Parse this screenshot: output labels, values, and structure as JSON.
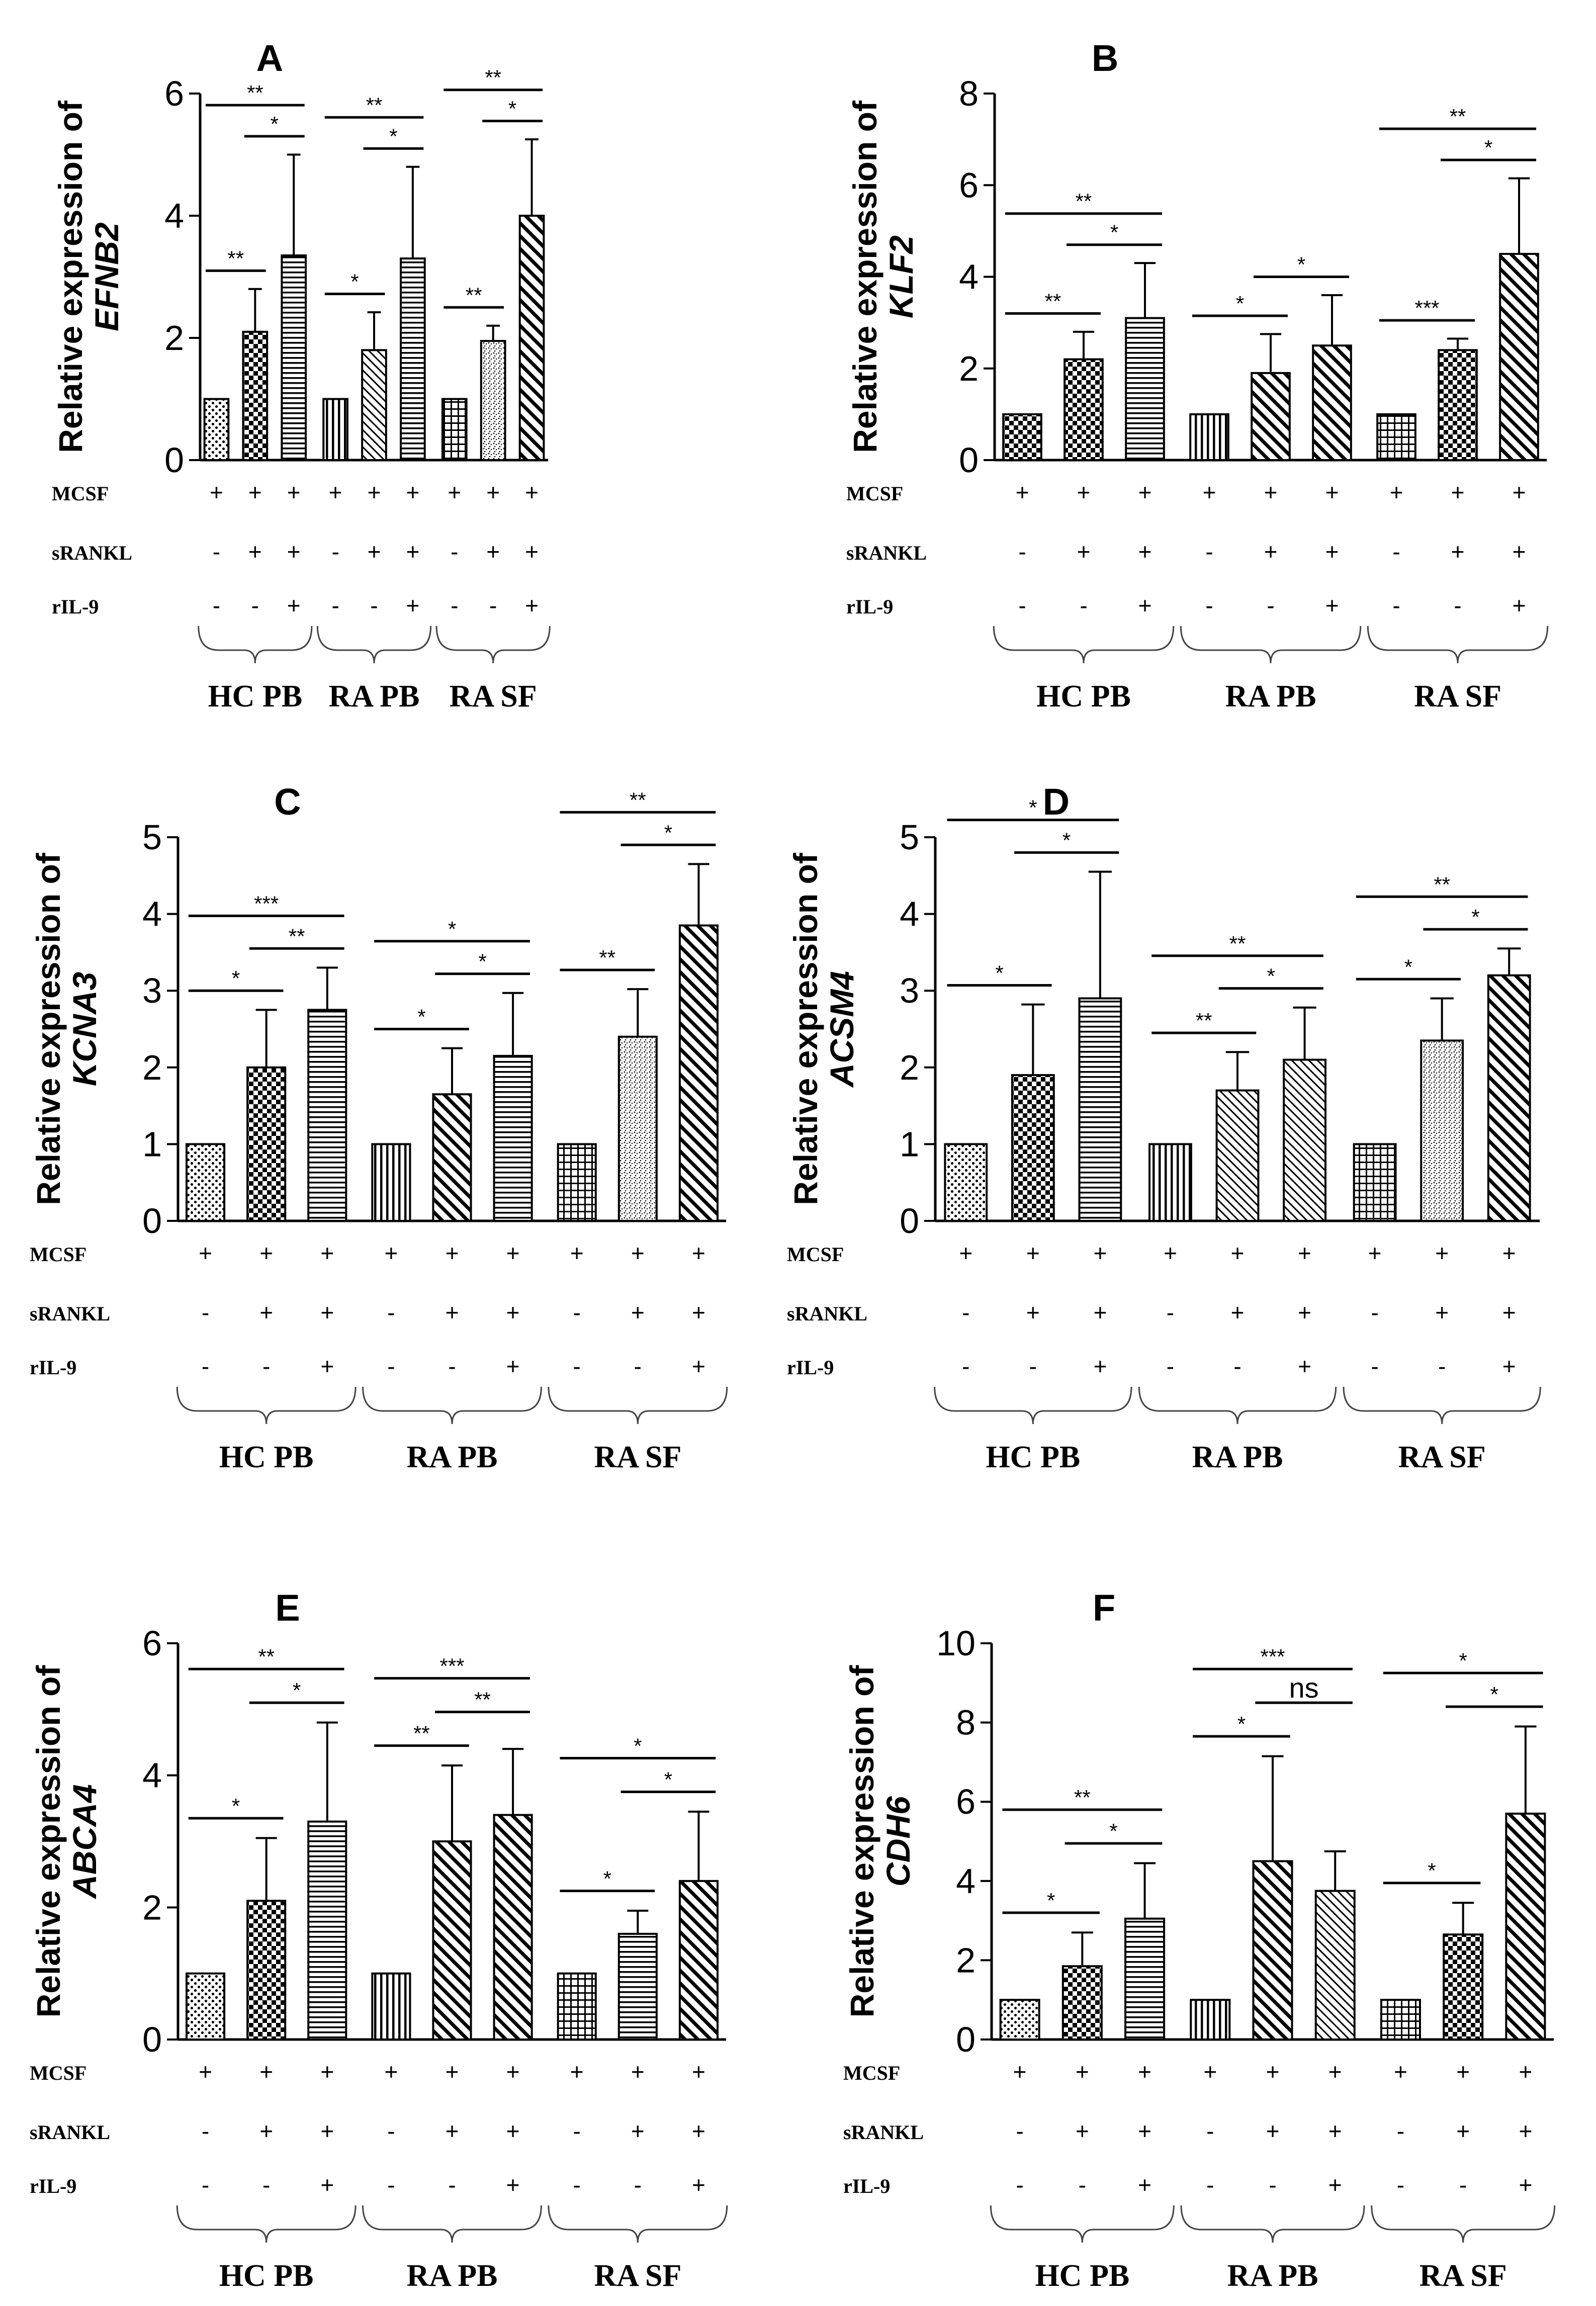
{
  "figure": {
    "ylabel_prefix": "Relative expression of",
    "row_labels": [
      "MCSF",
      "sRANKL",
      "rIL-9"
    ],
    "row_signs": [
      [
        "+",
        "+",
        "+",
        "+",
        "+",
        "+",
        "+",
        "+",
        "+"
      ],
      [
        "-",
        "+",
        "+",
        "-",
        "+",
        "+",
        "-",
        "+",
        "+"
      ],
      [
        "-",
        "-",
        "+",
        "-",
        "-",
        "+",
        "-",
        "-",
        "+"
      ]
    ],
    "groups": [
      "HC PB",
      "RA PB",
      "RA SF"
    ],
    "colors": {
      "ink": "#000000",
      "background": "#ffffff"
    }
  },
  "chart_data": [
    {
      "type": "bar",
      "panel": "A",
      "gene": "EFNB2",
      "ylim": [
        0,
        6
      ],
      "yticks": [
        0,
        2,
        4,
        6
      ],
      "values": [
        1,
        2.1,
        3.35,
        1,
        1.8,
        3.3,
        1,
        1.95,
        4.0
      ],
      "errors": [
        0,
        0.7,
        1.65,
        0,
        0.62,
        1.5,
        0,
        0.25,
        1.25
      ],
      "significance": [
        {
          "from": 0,
          "to": 1,
          "label": "**"
        },
        {
          "from": 0,
          "to": 2,
          "label": "**"
        },
        {
          "from": 1,
          "to": 2,
          "label": "*"
        },
        {
          "from": 3,
          "to": 4,
          "label": "*"
        },
        {
          "from": 3,
          "to": 5,
          "label": "**"
        },
        {
          "from": 4,
          "to": 5,
          "label": "*"
        },
        {
          "from": 6,
          "to": 7,
          "label": "**"
        },
        {
          "from": 6,
          "to": 8,
          "label": "**"
        },
        {
          "from": 7,
          "to": 8,
          "label": "*"
        }
      ]
    },
    {
      "type": "bar",
      "panel": "B",
      "gene": "KLF2",
      "ylim": [
        0,
        8
      ],
      "yticks": [
        0,
        2,
        4,
        6,
        8
      ],
      "values": [
        1,
        2.2,
        3.1,
        1,
        1.9,
        2.5,
        1,
        2.4,
        4.5
      ],
      "errors": [
        0,
        0.6,
        1.2,
        0,
        0.85,
        1.1,
        0,
        0.25,
        1.65
      ],
      "significance": [
        {
          "from": 0,
          "to": 1,
          "label": "**"
        },
        {
          "from": 0,
          "to": 2,
          "label": "**"
        },
        {
          "from": 1,
          "to": 2,
          "label": "*"
        },
        {
          "from": 3,
          "to": 4,
          "label": "*"
        },
        {
          "from": 4,
          "to": 5,
          "label": "*"
        },
        {
          "from": 6,
          "to": 7,
          "label": "***"
        },
        {
          "from": 7,
          "to": 8,
          "label": "*"
        },
        {
          "from": 6,
          "to": 8,
          "label": "**"
        }
      ]
    },
    {
      "type": "bar",
      "panel": "C",
      "gene": "KCNA3",
      "ylim": [
        0,
        5
      ],
      "yticks": [
        0,
        1,
        2,
        3,
        4,
        5
      ],
      "values": [
        1,
        2.0,
        2.75,
        1,
        1.65,
        2.15,
        1,
        2.4,
        3.85
      ],
      "errors": [
        0,
        0.75,
        0.55,
        0,
        0.6,
        0.82,
        0,
        0.62,
        0.8
      ],
      "significance": [
        {
          "from": 0,
          "to": 1,
          "label": "*"
        },
        {
          "from": 0,
          "to": 2,
          "label": "***"
        },
        {
          "from": 1,
          "to": 2,
          "label": "**"
        },
        {
          "from": 3,
          "to": 4,
          "label": "*"
        },
        {
          "from": 3,
          "to": 5,
          "label": "*"
        },
        {
          "from": 4,
          "to": 5,
          "label": "*"
        },
        {
          "from": 6,
          "to": 7,
          "label": "**"
        },
        {
          "from": 6,
          "to": 8,
          "label": "**"
        },
        {
          "from": 7,
          "to": 8,
          "label": "*"
        }
      ]
    },
    {
      "type": "bar",
      "panel": "D",
      "gene": "ACSM4",
      "ylim": [
        0,
        5
      ],
      "yticks": [
        0,
        1,
        2,
        3,
        4,
        5
      ],
      "values": [
        1,
        1.9,
        2.9,
        1,
        1.7,
        2.1,
        1,
        2.35,
        3.2
      ],
      "errors": [
        0,
        0.92,
        1.65,
        0,
        0.5,
        0.68,
        0,
        0.55,
        0.35
      ],
      "significance": [
        {
          "from": 0,
          "to": 1,
          "label": "*"
        },
        {
          "from": 0,
          "to": 2,
          "label": "*"
        },
        {
          "from": 1,
          "to": 2,
          "label": "*"
        },
        {
          "from": 3,
          "to": 4,
          "label": "**"
        },
        {
          "from": 3,
          "to": 5,
          "label": "**"
        },
        {
          "from": 4,
          "to": 5,
          "label": "*"
        },
        {
          "from": 6,
          "to": 7,
          "label": "*"
        },
        {
          "from": 6,
          "to": 8,
          "label": "**"
        },
        {
          "from": 7,
          "to": 8,
          "label": "*"
        }
      ]
    },
    {
      "type": "bar",
      "panel": "E",
      "gene": "ABCA4",
      "ylim": [
        0,
        6
      ],
      "yticks": [
        0,
        2,
        4,
        6
      ],
      "values": [
        1,
        2.1,
        3.3,
        1,
        3.0,
        3.4,
        1,
        1.6,
        2.4
      ],
      "errors": [
        0,
        0.95,
        1.5,
        0,
        1.15,
        1.0,
        0,
        0.35,
        1.05
      ],
      "significance": [
        {
          "from": 0,
          "to": 1,
          "label": "*"
        },
        {
          "from": 0,
          "to": 2,
          "label": "**"
        },
        {
          "from": 1,
          "to": 2,
          "label": "*"
        },
        {
          "from": 3,
          "to": 4,
          "label": "**"
        },
        {
          "from": 3,
          "to": 5,
          "label": "***"
        },
        {
          "from": 4,
          "to": 5,
          "label": "**"
        },
        {
          "from": 6,
          "to": 7,
          "label": "*"
        },
        {
          "from": 6,
          "to": 8,
          "label": "*"
        },
        {
          "from": 7,
          "to": 8,
          "label": "*"
        }
      ]
    },
    {
      "type": "bar",
      "panel": "F",
      "gene": "CDH6",
      "ylim": [
        0,
        10
      ],
      "yticks": [
        0,
        2,
        4,
        6,
        8,
        10
      ],
      "values": [
        1,
        1.85,
        3.05,
        1,
        4.5,
        3.75,
        1,
        2.65,
        5.7
      ],
      "errors": [
        0,
        0.85,
        1.4,
        0,
        2.65,
        1.0,
        0,
        0.8,
        2.2
      ],
      "significance": [
        {
          "from": 0,
          "to": 1,
          "label": "*"
        },
        {
          "from": 0,
          "to": 2,
          "label": "**"
        },
        {
          "from": 1,
          "to": 2,
          "label": "*"
        },
        {
          "from": 3,
          "to": 4,
          "label": "*"
        },
        {
          "from": 3,
          "to": 5,
          "label": "***"
        },
        {
          "from": 4,
          "to": 5,
          "label": "ns"
        },
        {
          "from": 6,
          "to": 7,
          "label": "*"
        },
        {
          "from": 6,
          "to": 8,
          "label": "*"
        },
        {
          "from": 7,
          "to": 8,
          "label": "*"
        }
      ]
    }
  ]
}
